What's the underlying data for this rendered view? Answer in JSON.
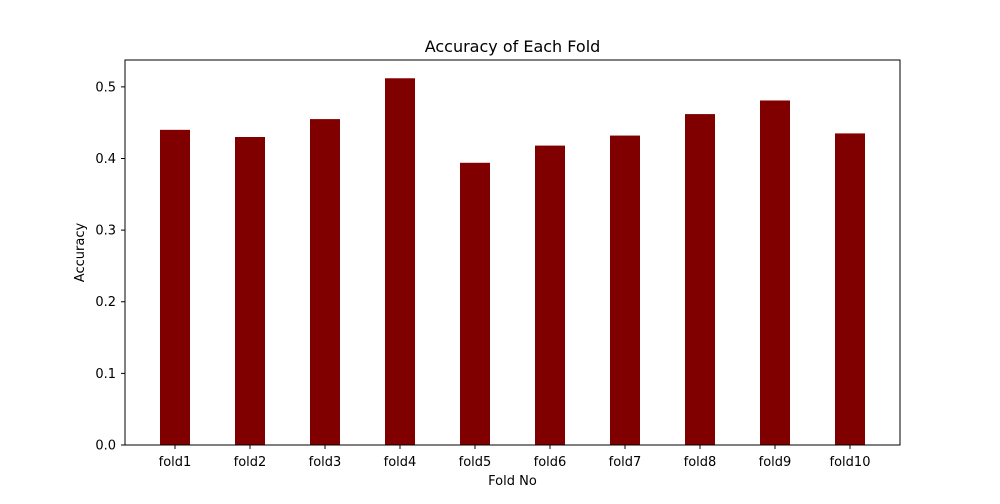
{
  "chart_data": {
    "type": "bar",
    "title": "Accuracy of Each Fold",
    "xlabel": "Fold No",
    "ylabel": "Accuracy",
    "categories": [
      "fold1",
      "fold2",
      "fold3",
      "fold4",
      "fold5",
      "fold6",
      "fold7",
      "fold8",
      "fold9",
      "fold10"
    ],
    "values": [
      0.44,
      0.43,
      0.455,
      0.512,
      0.394,
      0.418,
      0.432,
      0.462,
      0.481,
      0.435
    ],
    "ylim": [
      0,
      0.5375
    ],
    "yticks": [
      0.0,
      0.1,
      0.2,
      0.3,
      0.4,
      0.5
    ],
    "ytick_labels": [
      "0.0",
      "0.1",
      "0.2",
      "0.3",
      "0.4",
      "0.5"
    ],
    "bar_color": "#800000",
    "grid": false,
    "legend": "none"
  }
}
